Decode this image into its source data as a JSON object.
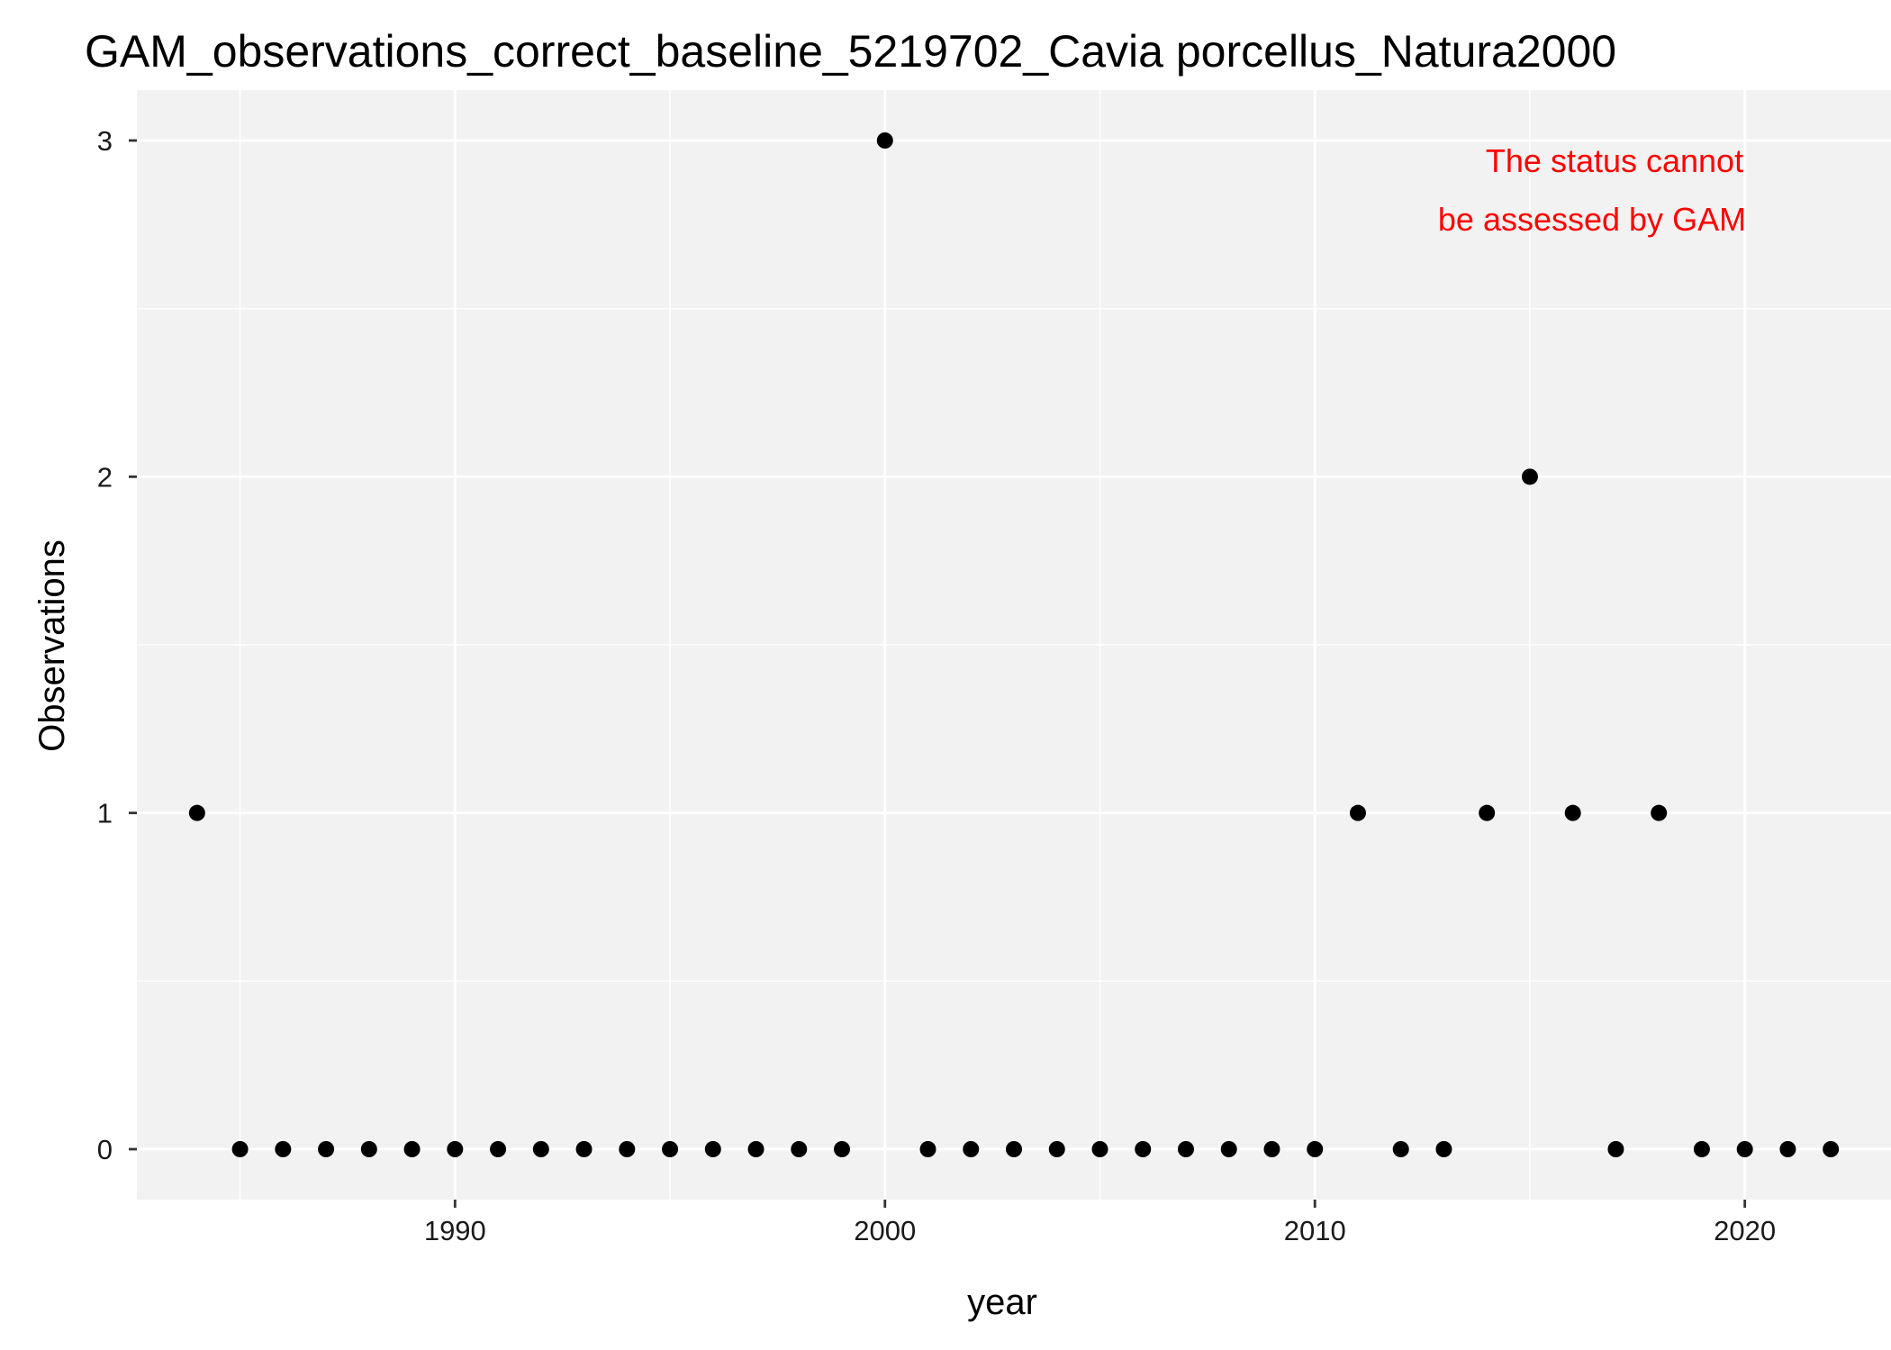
{
  "chart_data": {
    "type": "scatter",
    "title": "GAM_observations_correct_baseline_5219702_Cavia porcellus_Natura2000",
    "xlabel": "year",
    "ylabel": "Observations",
    "xlim": [
      1982.6,
      2023.4
    ],
    "ylim": [
      -0.15,
      3.15
    ],
    "x_ticks": [
      1990,
      2000,
      2010,
      2020
    ],
    "x_minor_ticks": [
      1985,
      1995,
      2005,
      2015
    ],
    "y_ticks": [
      0,
      1,
      2,
      3
    ],
    "y_minor_ticks": [
      0.5,
      1.5,
      2.5
    ],
    "grid": true,
    "legend": "none",
    "annotation": {
      "lines": [
        "The status cannot",
        "be assessed by GAM"
      ],
      "color": "#ff0000",
      "position": "top-right"
    },
    "colors": {
      "panel_background": "#f2f2f2",
      "grid": "#ffffff",
      "points": "#000000"
    },
    "series": [
      {
        "x": [
          1984,
          1985,
          1986,
          1987,
          1988,
          1989,
          1990,
          1991,
          1992,
          1993,
          1994,
          1995,
          1996,
          1997,
          1998,
          1999,
          2000,
          2001,
          2002,
          2003,
          2004,
          2005,
          2006,
          2007,
          2008,
          2009,
          2010,
          2011,
          2012,
          2013,
          2014,
          2015,
          2016,
          2017,
          2018,
          2019,
          2020,
          2021,
          2022
        ],
        "y": [
          1,
          0,
          0,
          0,
          0,
          0,
          0,
          0,
          0,
          0,
          0,
          0,
          0,
          0,
          0,
          0,
          3,
          0,
          0,
          0,
          0,
          0,
          0,
          0,
          0,
          0,
          0,
          1,
          0,
          0,
          1,
          2,
          1,
          0,
          1,
          0,
          0,
          0,
          0
        ]
      }
    ]
  }
}
